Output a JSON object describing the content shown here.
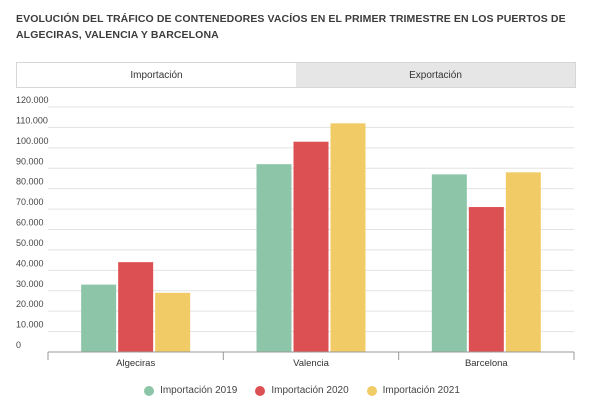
{
  "header": {
    "title": "EVOLUCIÓN DEL TRÁFICO DE CONTENEDORES VACÍOS EN EL PRIMER TRIMESTRE EN LOS PUERTOS DE ALGECIRAS, VALENCIA Y BARCELONA"
  },
  "tabs": [
    {
      "label": "Importación",
      "active": true
    },
    {
      "label": "Exportación",
      "active": false
    }
  ],
  "chart_data": {
    "type": "bar",
    "categories": [
      "Algeciras",
      "Valencia",
      "Barcelona"
    ],
    "series": [
      {
        "name": "Importación 2019",
        "color": "#8cc5a8",
        "values": [
          33000,
          92000,
          87000
        ]
      },
      {
        "name": "Importación 2020",
        "color": "#dc4f52",
        "values": [
          44000,
          103000,
          71000
        ]
      },
      {
        "name": "Importación 2021",
        "color": "#f0cb66",
        "values": [
          29000,
          112000,
          88000
        ]
      }
    ],
    "ylim": [
      0,
      120000
    ],
    "yticks": [
      "0",
      "10.000",
      "20.000",
      "30.000",
      "40.000",
      "50.000",
      "60.000",
      "70.000",
      "80.000",
      "90.000",
      "100.000",
      "110.000",
      "120.000"
    ],
    "grid": true,
    "legend_position": "bottom"
  }
}
